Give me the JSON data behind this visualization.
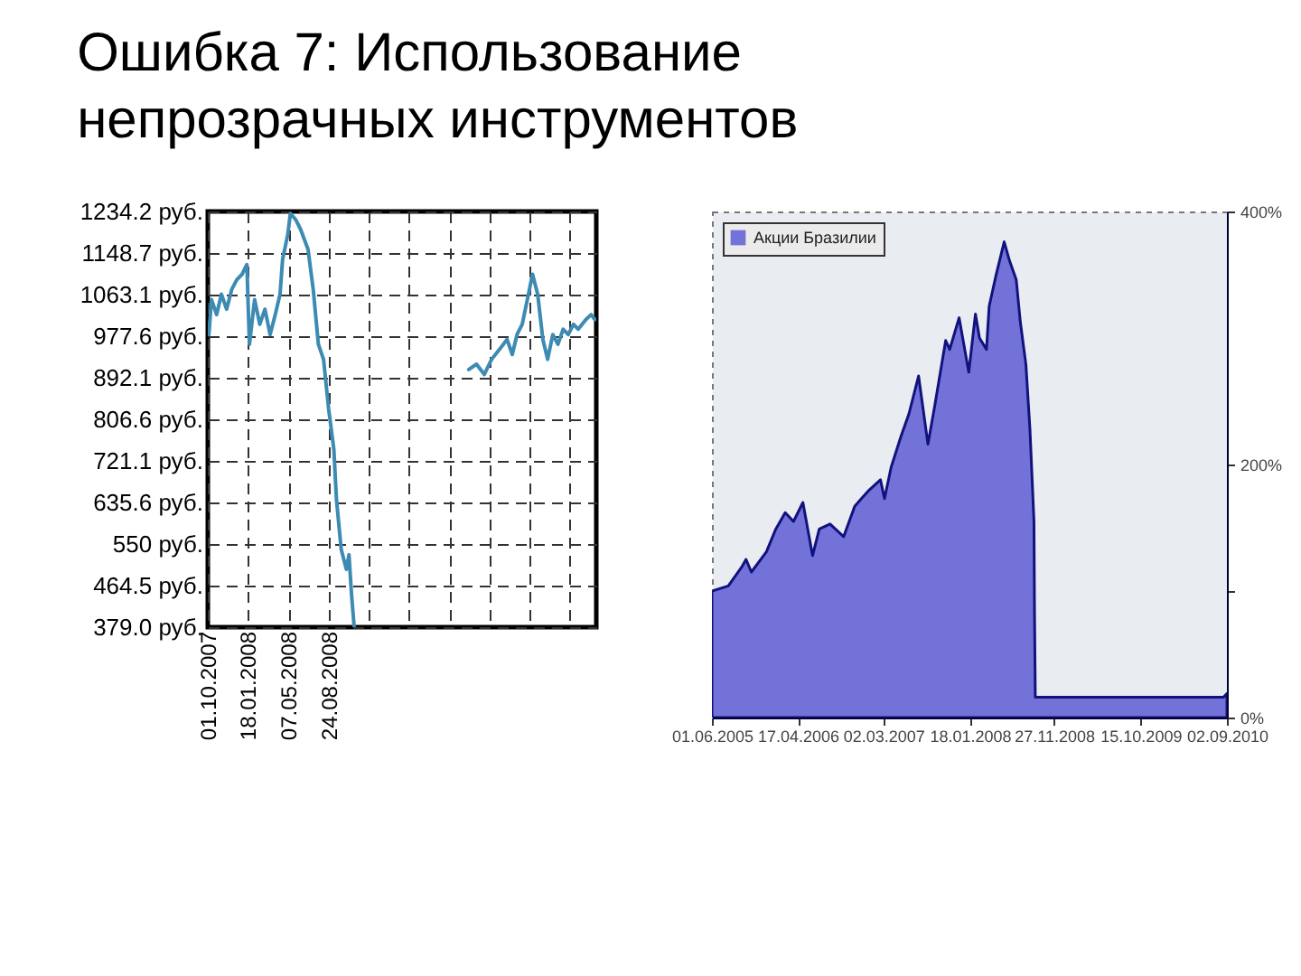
{
  "chart_data": [
    {
      "type": "line",
      "title": "Ошибка 7: Использование\nнепрозрачных инструментов",
      "x": [
        "2007-10-04",
        "2007-10-11",
        "2007-10-25",
        "2007-11-07",
        "2007-11-21",
        "2007-12-05",
        "2007-12-19",
        "2008-01-02",
        "2008-01-15",
        "2008-01-22",
        "2008-02-05",
        "2008-02-19",
        "2008-03-04",
        "2008-03-18",
        "2008-04-01",
        "2008-04-14",
        "2008-04-21",
        "2008-05-05",
        "2008-05-12",
        "2008-05-26",
        "2008-06-09",
        "2008-06-29",
        "2008-07-13",
        "2008-07-27",
        "2008-08-10",
        "2008-08-24",
        "2008-09-07",
        "2008-09-14",
        "2008-09-27",
        "2008-10-11",
        "2008-10-18",
        "2008-10-25",
        "2008-11-01",
        "2008-11-15",
        "2009-09-08",
        "2009-09-29",
        "2009-10-20",
        "2009-11-09",
        "2009-11-30",
        "2009-12-21",
        "2010-01-04",
        "2010-01-17",
        "2010-01-31",
        "2010-02-14",
        "2010-02-28",
        "2010-03-14",
        "2010-03-28",
        "2010-04-10",
        "2010-04-24",
        "2010-05-08",
        "2010-05-22",
        "2010-06-05",
        "2010-06-19",
        "2010-07-02",
        "2010-07-23",
        "2010-08-06",
        "2010-08-16"
      ],
      "values": [
        981,
        1053,
        1022,
        1064,
        1033,
        1074,
        1094,
        1105,
        1125,
        961,
        1053,
        1002,
        1033,
        981,
        1022,
        1064,
        1136,
        1187,
        1230,
        1218,
        1197,
        1156,
        1074,
        961,
        930,
        827,
        745,
        642,
        539,
        498,
        528,
        446,
        380,
        null,
        909,
        920,
        899,
        930,
        950,
        971,
        940,
        981,
        1002,
        1053,
        1105,
        1064,
        971,
        930,
        981,
        961,
        992,
        981,
        1002,
        992,
        1012,
        1022,
        1012
      ],
      "color": "#3d8bb3",
      "xlim": [
        "2007-10-01",
        "2010-08-20"
      ],
      "xticks": [
        {
          "value": "2007-10-01",
          "label": "01.10.2007"
        },
        {
          "value": "2008-01-18",
          "label": "18.01.2008"
        },
        {
          "value": "2008-05-07",
          "label": "07.05.2008"
        },
        {
          "value": "2008-08-24",
          "label": "24.08.2008"
        },
        {
          "value": "2008-12-11",
          "label": null
        },
        {
          "value": "2009-03-30",
          "label": null
        },
        {
          "value": "2009-07-17",
          "label": null
        },
        {
          "value": "2009-11-03",
          "label": null
        },
        {
          "value": "2010-02-20",
          "label": null
        },
        {
          "value": "2010-06-09",
          "label": null
        }
      ],
      "ylim": [
        379.0,
        1234.2
      ],
      "yticks": [
        {
          "value": 1234.2,
          "label": "1234.2 руб."
        },
        {
          "value": 1148.7,
          "label": "1148.7 руб."
        },
        {
          "value": 1063.1,
          "label": "1063.1 руб."
        },
        {
          "value": 977.6,
          "label": "977.6 руб."
        },
        {
          "value": 892.1,
          "label": "892.1 руб."
        },
        {
          "value": 806.6,
          "label": "806.6 руб."
        },
        {
          "value": 721.1,
          "label": "721.1 руб."
        },
        {
          "value": 635.6,
          "label": "635.6 руб."
        },
        {
          "value": 550,
          "label": "550 руб."
        },
        {
          "value": 464.5,
          "label": "464.5 руб."
        },
        {
          "value": 379.0,
          "label": "379.0 руб."
        }
      ],
      "grid": true
    },
    {
      "type": "area",
      "x": [
        "2005-06-01",
        "2005-08-01",
        "2005-09-20",
        "2005-10-06",
        "2005-10-26",
        "2005-12-21",
        "2006-01-25",
        "2006-03-01",
        "2006-04-01",
        "2006-05-06",
        "2006-06-11",
        "2006-07-06",
        "2006-08-15",
        "2006-10-05",
        "2006-11-15",
        "2006-12-10",
        "2007-01-04",
        "2007-02-19",
        "2007-03-06",
        "2007-03-31",
        "2007-05-06",
        "2007-06-05",
        "2007-07-11",
        "2007-08-15",
        "2007-09-09",
        "2007-10-20",
        "2007-11-04",
        "2007-12-09",
        "2008-01-14",
        "2008-02-08",
        "2008-02-23",
        "2008-03-20",
        "2008-03-30",
        "2008-04-24",
        "2008-05-25",
        "2008-06-14",
        "2008-07-09",
        "2008-07-24",
        "2008-08-14",
        "2008-08-29",
        "2008-09-13",
        "2008-09-15",
        "2008-09-18",
        "2009-06-01",
        "2010-08-20",
        "2010-09-02"
      ],
      "series": [
        {
          "name": "Акции Бразилии",
          "color": "#7272d9",
          "values": [
            100,
            104,
            119,
            125,
            115,
            131,
            149,
            162,
            155,
            170,
            128,
            149,
            153,
            143,
            167,
            173,
            179,
            188,
            173,
            198,
            222,
            240,
            270,
            216,
            246,
            298,
            291,
            316,
            273,
            319,
            300,
            291,
            325,
            349,
            376,
            361,
            346,
            313,
            279,
            228,
            155,
            85,
            16,
            16,
            16,
            19
          ]
        }
      ],
      "xlim": [
        "2005-06-01",
        "2010-09-02"
      ],
      "xticks": [
        {
          "value": "2005-06-01",
          "label": "01.06.2005"
        },
        {
          "value": "2006-04-17",
          "label": "17.04.2006"
        },
        {
          "value": "2007-03-02",
          "label": "02.03.2007"
        },
        {
          "value": "2008-01-18",
          "label": "18.01.2008"
        },
        {
          "value": "2008-11-27",
          "label": "27.11.2008"
        },
        {
          "value": "2009-10-15",
          "label": "15.10.2009"
        },
        {
          "value": "2010-09-02",
          "label": "02.09.2010"
        }
      ],
      "ylim": [
        0,
        400
      ],
      "yticks": [
        {
          "value": 400,
          "label": "400%"
        },
        {
          "value": 200,
          "label": "200%"
        },
        {
          "value": 100,
          "label": null
        },
        {
          "value": 0,
          "label": "0%"
        }
      ],
      "legend": "top left"
    }
  ]
}
